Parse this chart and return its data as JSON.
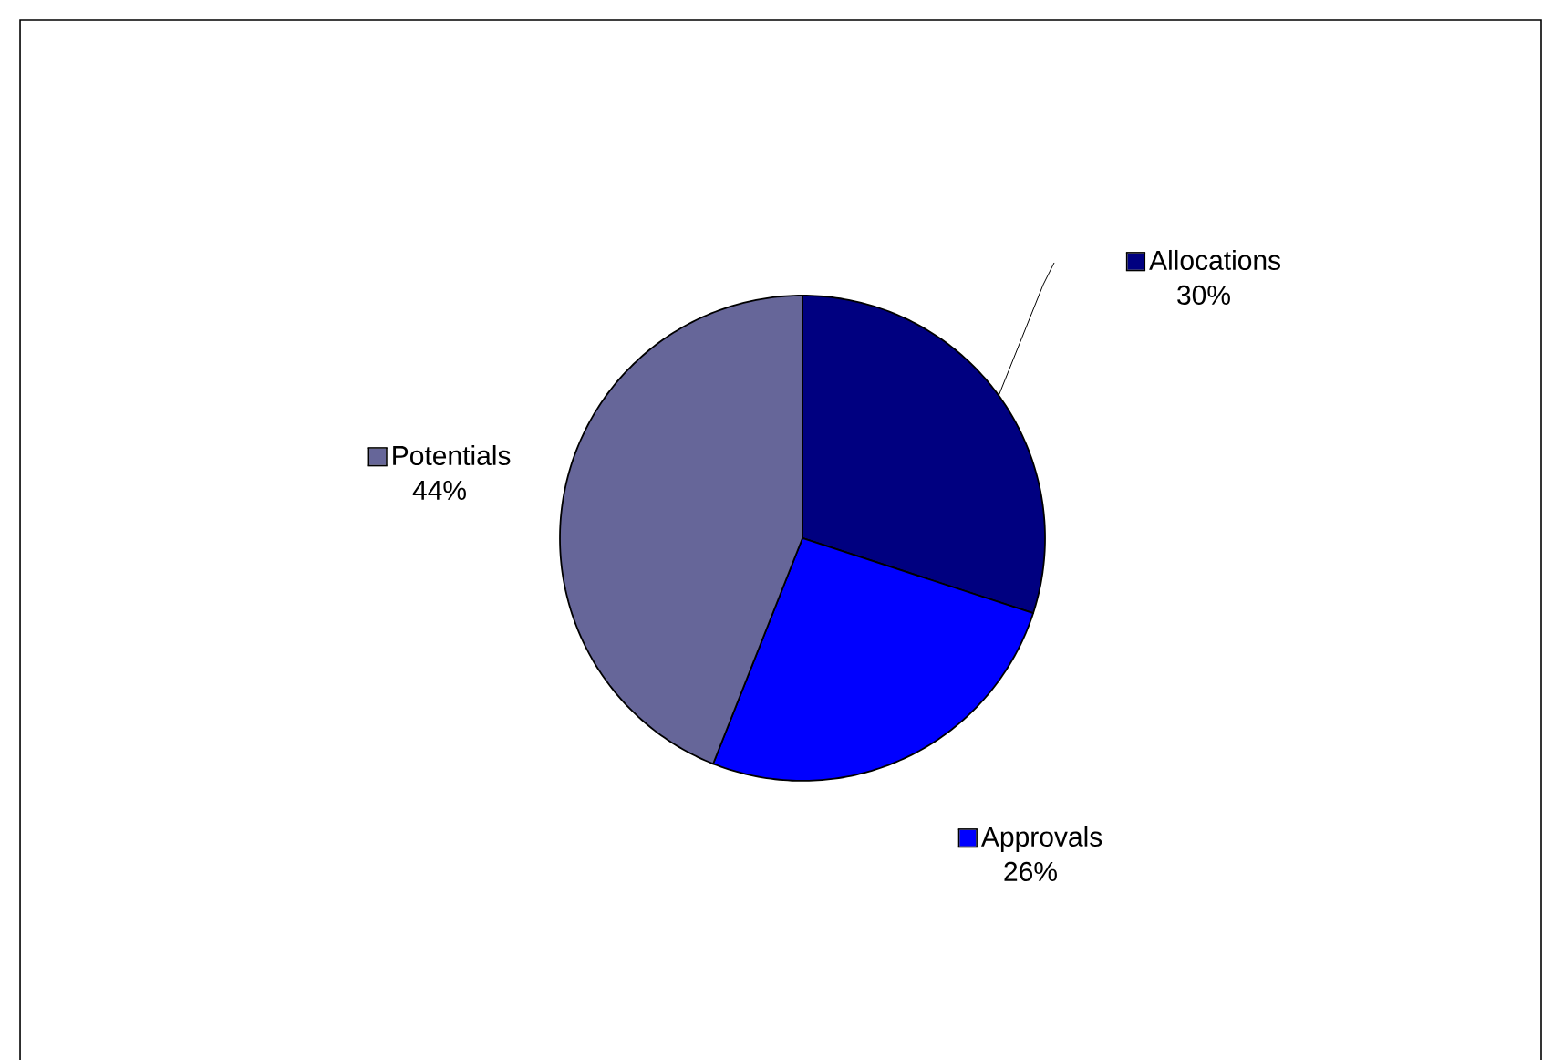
{
  "chart_data": {
    "type": "pie",
    "categories": [
      "Allocations",
      "Approvals",
      "Potentials"
    ],
    "values": [
      30,
      26,
      44
    ],
    "colors": [
      "#000080",
      "#0000ff",
      "#666699"
    ],
    "value_labels": [
      "30%",
      "26%",
      "44%"
    ],
    "legend": "right"
  }
}
